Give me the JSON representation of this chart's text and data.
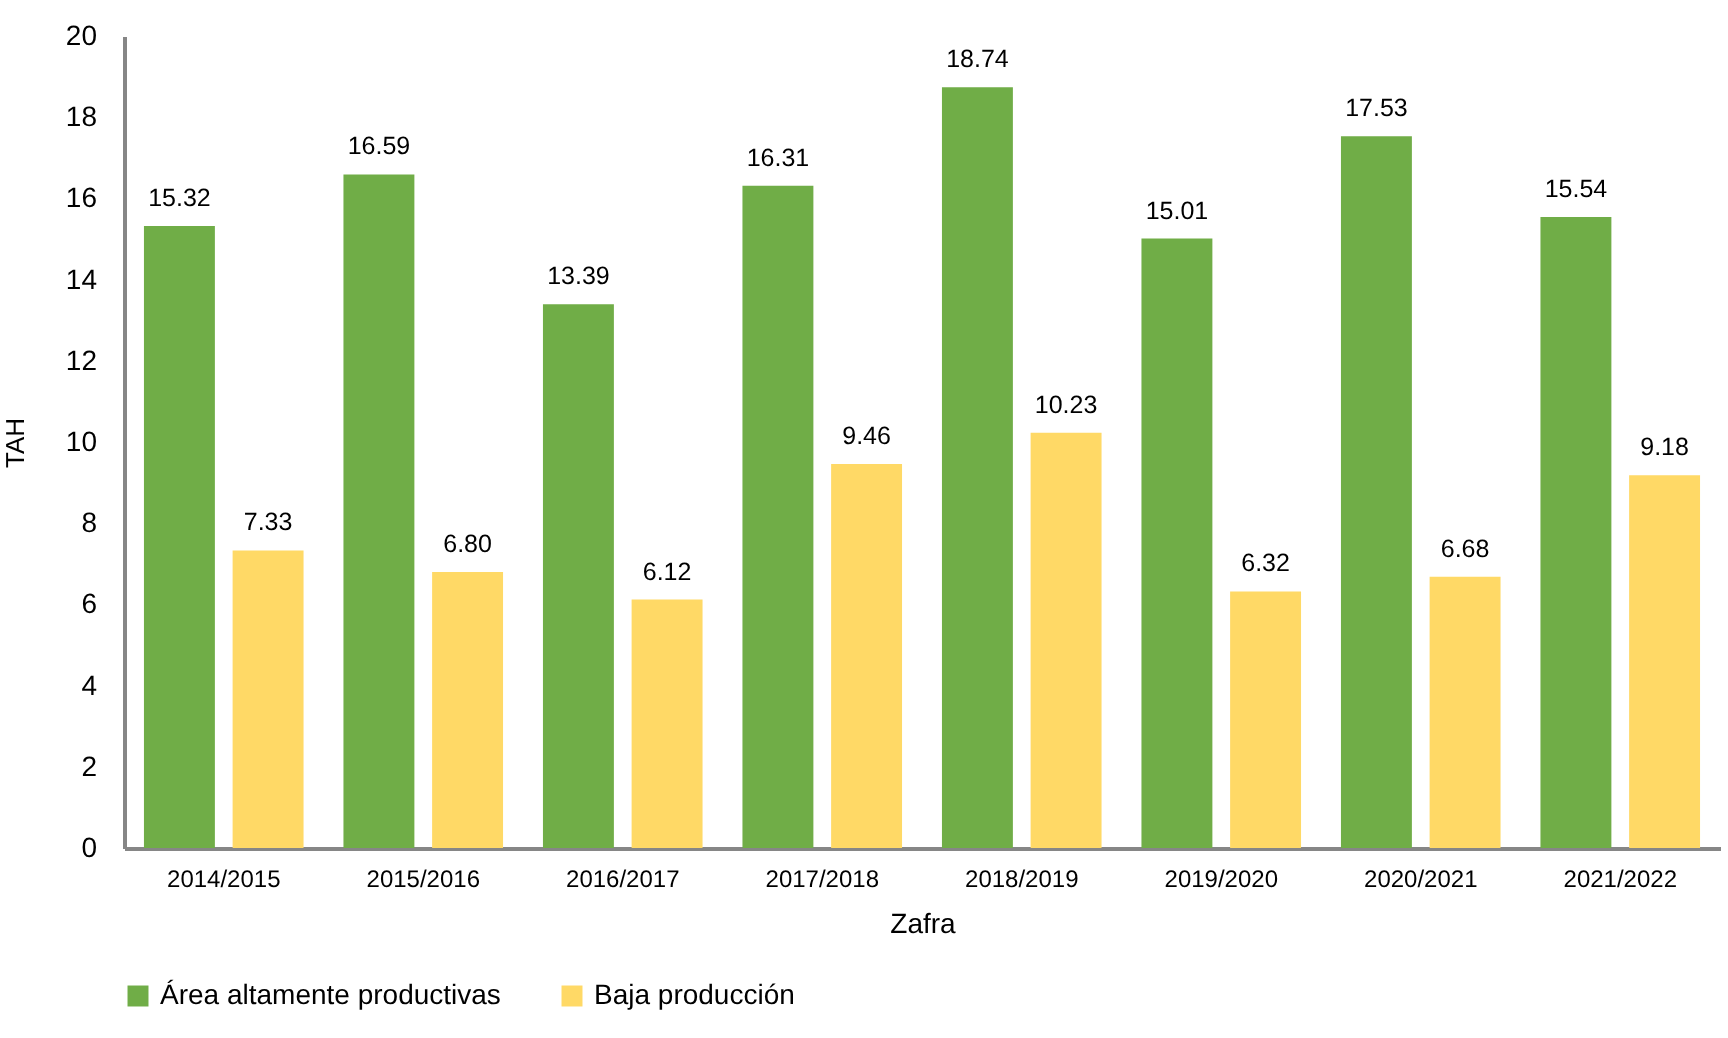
{
  "chart_data": {
    "type": "bar",
    "xlabel": "Zafra",
    "ylabel": "TAH",
    "categories": [
      "2014/2015",
      "2015/2016",
      "2016/2017",
      "2017/2018",
      "2018/2019",
      "2019/2020",
      "2020/2021",
      "2021/2022"
    ],
    "series": [
      {
        "name": "Área altamente productivas",
        "color": "#70ad47",
        "values": [
          15.32,
          16.59,
          13.39,
          16.31,
          18.74,
          15.01,
          17.53,
          15.54
        ],
        "value_labels": [
          "15.32",
          "16.59",
          "13.39",
          "16.31",
          "18.74",
          "15.01",
          "17.53",
          "15.54"
        ]
      },
      {
        "name": "Baja producción",
        "color": "#ffd966",
        "values": [
          7.33,
          6.8,
          6.12,
          9.46,
          10.23,
          6.32,
          6.68,
          9.18
        ],
        "value_labels": [
          "7.33",
          "6.80",
          "6.12",
          "9.46",
          "10.23",
          "6.32",
          "6.68",
          "9.18"
        ]
      }
    ],
    "ylim": [
      0,
      20
    ],
    "yticks": [
      0,
      2,
      4,
      6,
      8,
      10,
      12,
      14,
      16,
      18,
      20
    ],
    "legend": "bottom"
  }
}
